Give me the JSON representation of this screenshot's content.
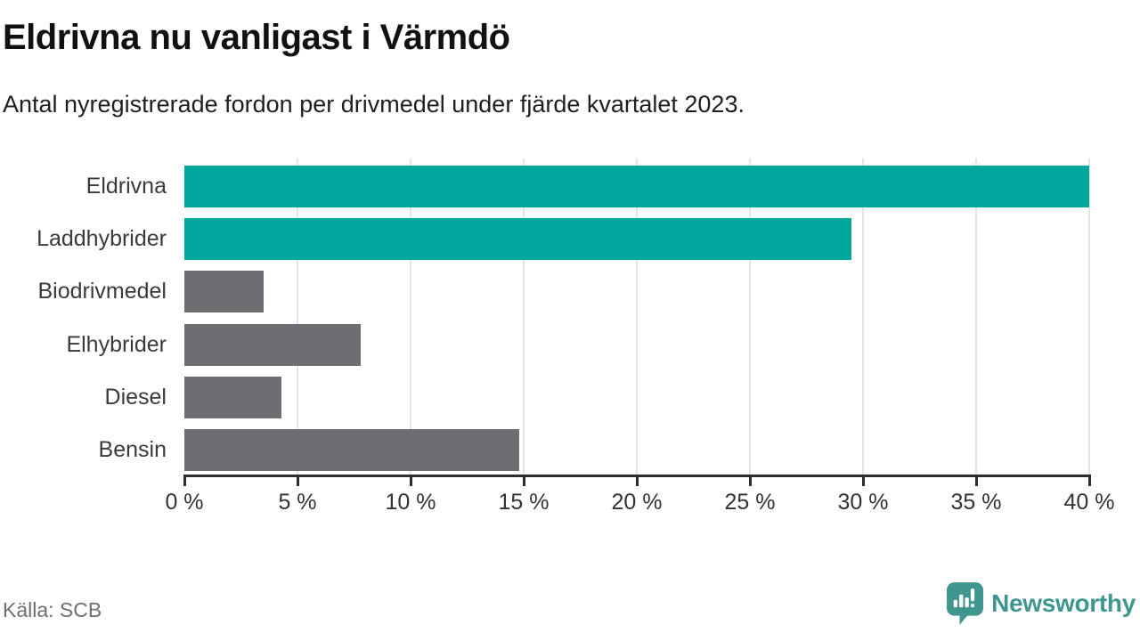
{
  "header": {
    "title": "Eldrivna nu vanligast i Värmdö",
    "subtitle": "Antal nyregistrerade fordon per drivmedel under fjärde kvartalet 2023."
  },
  "footer": {
    "source": "Källa: SCB",
    "brand": "Newsworthy"
  },
  "colors": {
    "bar_teal": "#00a79b",
    "bar_gray": "#6e6e72",
    "brand_teal": "#3f968f",
    "axis": "#2e2e2e",
    "gridline": "#e4e4e4",
    "label_text": "#3a3a3a",
    "source_text": "#6e6e73"
  },
  "chart_data": {
    "type": "bar",
    "orientation": "horizontal",
    "title": "Eldrivna nu vanligast i Värmdö",
    "subtitle": "Antal nyregistrerade fordon per drivmedel under fjärde kvartalet 2023.",
    "categories": [
      "Eldrivna",
      "Laddhybrider",
      "Biodrivmedel",
      "Elhybrider",
      "Diesel",
      "Bensin"
    ],
    "values": [
      40.0,
      29.5,
      3.5,
      7.8,
      4.3,
      14.8
    ],
    "unit": "%",
    "bar_colors": [
      "#00a79b",
      "#00a79b",
      "#6e6e72",
      "#6e6e72",
      "#6e6e72",
      "#6e6e72"
    ],
    "xlim": [
      0,
      40
    ],
    "x_tick_step": 5,
    "x_tick_labels": [
      "0 %",
      "5 %",
      "10 %",
      "15 %",
      "20 %",
      "25 %",
      "30 %",
      "35 %",
      "40 %"
    ],
    "grid": true,
    "legend": "none",
    "source": "Källa: SCB"
  }
}
